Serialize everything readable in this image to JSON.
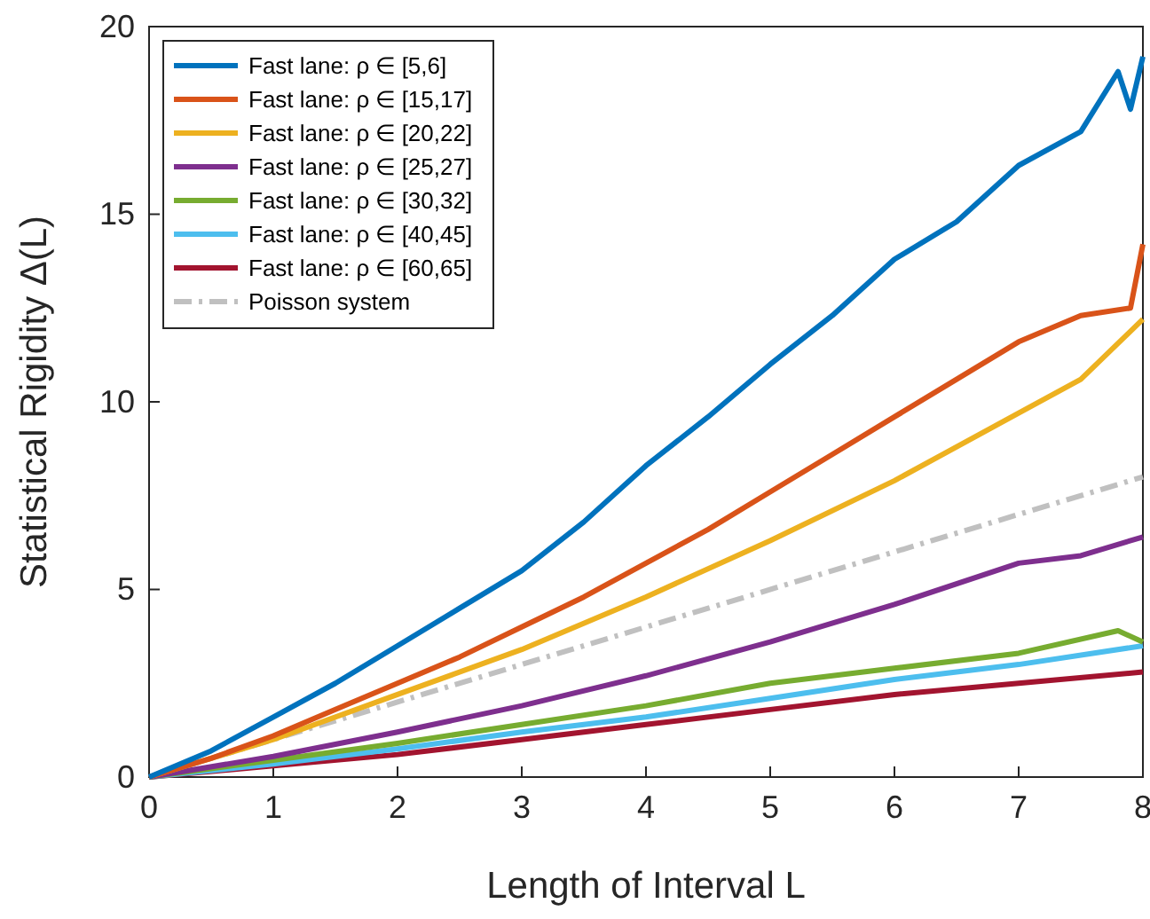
{
  "chart_data": {
    "type": "line",
    "xlabel": "Length of Interval L",
    "ylabel": "Statistical Rigidity Δ(L)",
    "xlim": [
      0,
      8
    ],
    "ylim": [
      0,
      20
    ],
    "xticks": [
      0,
      1,
      2,
      3,
      4,
      5,
      6,
      7,
      8
    ],
    "yticks": [
      0,
      5,
      10,
      15,
      20
    ],
    "grid": false,
    "legend": "top left",
    "marker": "none",
    "series": [
      {
        "name": "Fast lane: ρ ∈ [5,6]",
        "color": "#0072bd",
        "x": [
          0,
          0.5,
          1,
          1.5,
          2,
          2.5,
          3,
          3.5,
          4,
          4.5,
          5,
          5.5,
          6,
          6.5,
          7,
          7.5,
          7.8,
          7.9,
          8
        ],
        "values": [
          0,
          0.7,
          1.6,
          2.5,
          3.5,
          4.5,
          5.5,
          6.8,
          8.3,
          9.6,
          11,
          12.3,
          13.8,
          14.8,
          16.3,
          17.2,
          18.8,
          17.8,
          19.2
        ]
      },
      {
        "name": "Fast lane: ρ ∈ [15,17]",
        "color": "#d95319",
        "x": [
          0,
          0.5,
          1,
          1.5,
          2,
          2.5,
          3,
          3.5,
          4,
          4.5,
          5,
          5.5,
          6,
          6.5,
          7,
          7.5,
          7.9,
          8
        ],
        "values": [
          0,
          0.5,
          1.1,
          1.8,
          2.5,
          3.2,
          4,
          4.8,
          5.7,
          6.6,
          7.6,
          8.6,
          9.6,
          10.6,
          11.6,
          12.3,
          12.5,
          14.2
        ]
      },
      {
        "name": "Fast lane: ρ ∈ [20,22]",
        "color": "#edb120",
        "x": [
          0,
          1,
          2,
          3,
          4,
          5,
          6,
          7,
          7.5,
          8
        ],
        "values": [
          0,
          1,
          2.2,
          3.4,
          4.8,
          6.3,
          7.9,
          9.7,
          10.6,
          12.2
        ]
      },
      {
        "name": "Fast lane: ρ ∈ [25,27]",
        "color": "#7e2f8e",
        "x": [
          0,
          1,
          2,
          3,
          4,
          5,
          6,
          7,
          7.5,
          8
        ],
        "values": [
          0,
          0.55,
          1.2,
          1.9,
          2.7,
          3.6,
          4.6,
          5.7,
          5.9,
          6.4
        ]
      },
      {
        "name": "Fast lane: ρ ∈ [30,32]",
        "color": "#77ac30",
        "x": [
          0,
          1,
          2,
          3,
          4,
          5,
          6,
          7,
          7.8,
          8
        ],
        "values": [
          0,
          0.45,
          0.9,
          1.4,
          1.9,
          2.5,
          2.9,
          3.3,
          3.9,
          3.6
        ]
      },
      {
        "name": "Fast lane: ρ ∈ [40,45]",
        "color": "#4dbeee",
        "x": [
          0,
          1,
          2,
          3,
          4,
          5,
          6,
          7,
          8
        ],
        "values": [
          0,
          0.35,
          0.75,
          1.2,
          1.6,
          2.1,
          2.6,
          3,
          3.5
        ]
      },
      {
        "name": "Fast lane: ρ ∈ [60,65]",
        "color": "#a2142f",
        "x": [
          0,
          1,
          2,
          3,
          4,
          5,
          6,
          7,
          8
        ],
        "values": [
          0,
          0.3,
          0.6,
          1,
          1.4,
          1.8,
          2.2,
          2.5,
          2.8
        ]
      },
      {
        "name": "Poisson system",
        "color": "#c0c0c0",
        "line_style": "dashed",
        "x": [
          0,
          8
        ],
        "values": [
          0,
          8
        ]
      }
    ]
  }
}
